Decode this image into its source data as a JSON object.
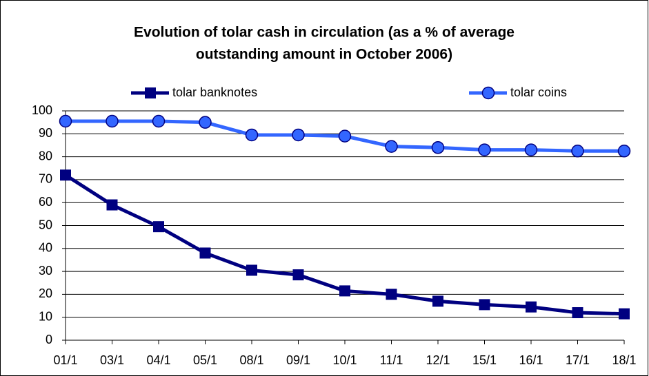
{
  "chart_data": {
    "type": "line",
    "title": [
      "Evolution of tolar cash in circulation (as a % of average",
      "outstanding amount in October 2006)"
    ],
    "categories": [
      "01/1",
      "03/1",
      "04/1",
      "05/1",
      "08/1",
      "09/1",
      "10/1",
      "11/1",
      "12/1",
      "15/1",
      "16/1",
      "17/1",
      "18/1"
    ],
    "series": [
      {
        "name": "tolar banknotes",
        "color": "#000080",
        "marker": "square",
        "values": [
          72,
          59,
          49.5,
          38,
          30.5,
          28.5,
          21.5,
          20,
          17,
          15.5,
          14.5,
          12,
          11.5
        ]
      },
      {
        "name": "tolar coins",
        "color": "#3366ff",
        "marker": "circle",
        "values": [
          95.5,
          95.5,
          95.5,
          95,
          89.5,
          89.5,
          89,
          84.5,
          84,
          83,
          83,
          82.5,
          82.5
        ]
      }
    ],
    "ylim": [
      0,
      100
    ],
    "yticks": [
      0,
      10,
      20,
      30,
      40,
      50,
      60,
      70,
      80,
      90,
      100
    ],
    "grid": true,
    "legend": "top"
  }
}
